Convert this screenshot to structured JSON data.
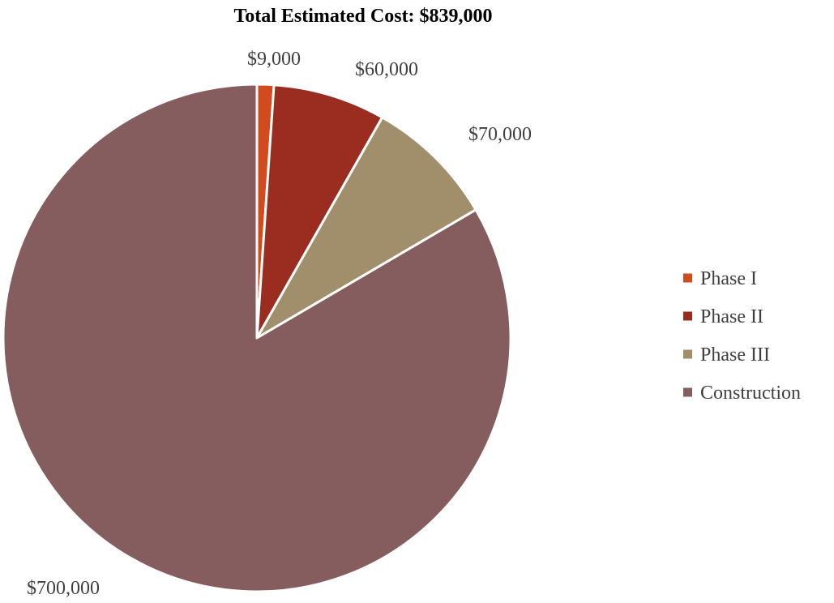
{
  "chart_data": {
    "type": "pie",
    "title": "Total Estimated Cost: $839,000",
    "start_angle_deg": 0,
    "direction": "clockwise",
    "slices": [
      {
        "label": "Phase I",
        "value": 9000,
        "display": "$9,000",
        "color": "#D24B1E"
      },
      {
        "label": "Phase II",
        "value": 60000,
        "display": "$60,000",
        "color": "#9B2D20"
      },
      {
        "label": "Phase III",
        "value": 70000,
        "display": "$70,000",
        "color": "#A18F6C"
      },
      {
        "label": "Construction",
        "value": 700000,
        "display": "$700,000",
        "color": "#855D5E"
      }
    ],
    "legend_position": "right",
    "slice_border_color": "#FFFFFF"
  }
}
